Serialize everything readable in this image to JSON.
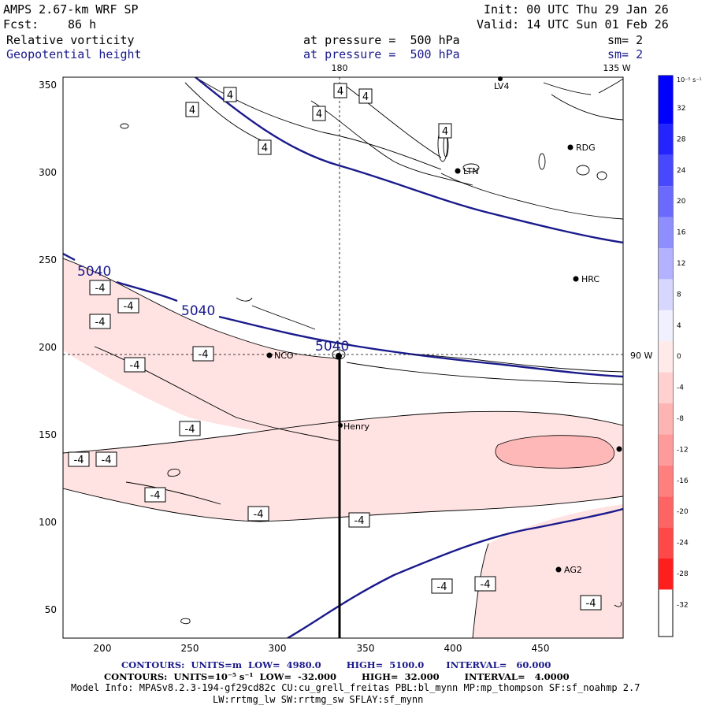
{
  "header": {
    "model": "AMPS 2.67-km WRF SP",
    "fcst_label": "Fcst:",
    "fcst_value": "86 h",
    "init": "Init: 00 UTC Thu 29 Jan 26",
    "valid": "Valid: 14 UTC Sun 01 Feb 26",
    "field1": "Relative vorticity",
    "field1_level": "at pressure =  500 hPa",
    "field1_sm": "sm= 2",
    "field2": "Geopotential height",
    "field2_level": "at pressure =  500 hPa",
    "field2_sm": "sm= 2"
  },
  "map": {
    "top_labels": [
      "180",
      "135 W"
    ],
    "right_label": "90 W",
    "x_ticks": [
      "200",
      "250",
      "300",
      "350",
      "400",
      "450"
    ],
    "y_ticks": [
      "350",
      "300",
      "250",
      "200",
      "150",
      "100",
      "50"
    ],
    "stations": [
      "NCO",
      "Henry",
      "RDG",
      "HRC",
      "AG2",
      "LTN",
      "LV4"
    ],
    "height_labels": [
      "5040",
      "5040",
      "5040"
    ],
    "vort_labels_pos": [
      "4",
      "4",
      "4",
      "4",
      "4",
      "4",
      "4"
    ],
    "vort_labels_neg": [
      "-4",
      "-4",
      "-4",
      "-4",
      "-4",
      "-4",
      "-4",
      "-4",
      "-4",
      "-4",
      "-4",
      "-4",
      "-4",
      "-4"
    ]
  },
  "colorbar": {
    "unit": "10⁻⁵ s⁻¹",
    "labels": [
      "32",
      "28",
      "24",
      "20",
      "16",
      "12",
      "8",
      "4",
      "0",
      "-4",
      "-8",
      "-12",
      "-16",
      "-20",
      "-24",
      "-28",
      "-32"
    ],
    "colors": [
      "#0000ff",
      "#2424ff",
      "#4848ff",
      "#6a6aff",
      "#8e8eff",
      "#b2b2ff",
      "#d6d6ff",
      "#f0f0ff",
      "#ffeaea",
      "#ffd0d0",
      "#ffb4b4",
      "#ff9a9a",
      "#ff7e7e",
      "#ff6464",
      "#ff4848",
      "#ff1e1e"
    ]
  },
  "footer": {
    "line1": "CONTOURS:  UNITS=m  LOW=  4980.0        HIGH=  5100.0       INTERVAL=   60.000",
    "line2": "CONTOURS:  UNITS=10⁻⁵ s⁻¹  LOW=  -32.000        HIGH=  32.000        INTERVAL=   4.0000",
    "line3": "Model Info: MPASv8.2.3-194-gf29cd82c CU:cu_grell_freitas PBL:bl_mynn MP:mp_thompson SF:sf_noahmp 2.7",
    "line4": "LW:rrtmg_lw SW:rrtmg_sw SFLAY:sf_mynn"
  }
}
